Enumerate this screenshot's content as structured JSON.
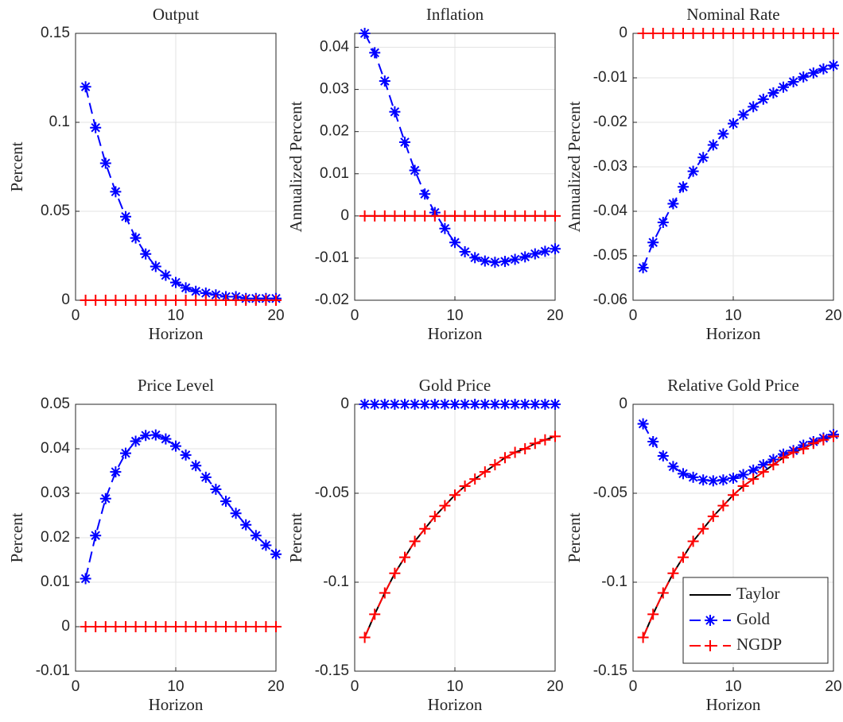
{
  "chart_data": [
    {
      "type": "line",
      "title": "Output",
      "xlabel": "Horizon",
      "ylabel": "Percent",
      "x": [
        1,
        2,
        3,
        4,
        5,
        6,
        7,
        8,
        9,
        10,
        11,
        12,
        13,
        14,
        15,
        16,
        17,
        18,
        19,
        20
      ],
      "xlim": [
        0,
        20
      ],
      "xticks": [
        0,
        10,
        20
      ],
      "ylim": [
        0,
        0.15
      ],
      "yticks": [
        0,
        0.05,
        0.1,
        0.15
      ],
      "grid": true,
      "series": [
        {
          "color": "#000000",
          "dash": false,
          "values": [
            0,
            0,
            0,
            0,
            0,
            0,
            0,
            0,
            0,
            0,
            0,
            0,
            0,
            0,
            0,
            0,
            0,
            0,
            0,
            0
          ]
        },
        {
          "color": "#0000ff",
          "dash": true,
          "marker": "*",
          "values": [
            0.12,
            0.097,
            0.077,
            0.061,
            0.047,
            0.035,
            0.026,
            0.019,
            0.014,
            0.01,
            0.007,
            0.005,
            0.004,
            0.003,
            0.002,
            0.002,
            0.001,
            0.001,
            0.001,
            0.001
          ]
        },
        {
          "color": "#ff0000",
          "dash": true,
          "marker": "+",
          "values": [
            0,
            0,
            0,
            0,
            0,
            0,
            0,
            0,
            0,
            0,
            0,
            0,
            0,
            0,
            0,
            0,
            0,
            0,
            0,
            0
          ]
        }
      ]
    },
    {
      "type": "line",
      "title": "Inflation",
      "xlabel": "Horizon",
      "ylabel": "Annualized Percent",
      "x": [
        1,
        2,
        3,
        4,
        5,
        6,
        7,
        8,
        9,
        10,
        11,
        12,
        13,
        14,
        15,
        16,
        17,
        18,
        19,
        20
      ],
      "xlim": [
        0,
        20
      ],
      "xticks": [
        0,
        10,
        20
      ],
      "ylim": [
        -0.02,
        0.0433
      ],
      "yticks": [
        -0.02,
        -0.01,
        0,
        0.01,
        0.02,
        0.03,
        0.04
      ],
      "grid": true,
      "series": [
        {
          "color": "#000000",
          "dash": false,
          "values": [
            0,
            0,
            0,
            0,
            0,
            0,
            0,
            0,
            0,
            0,
            0,
            0,
            0,
            0,
            0,
            0,
            0,
            0,
            0,
            0
          ]
        },
        {
          "color": "#0000ff",
          "dash": true,
          "marker": "*",
          "values": [
            0.0433,
            0.0387,
            0.032,
            0.0247,
            0.0175,
            0.0108,
            0.0052,
            0.0008,
            -0.003,
            -0.0063,
            -0.0085,
            -0.0099,
            -0.0107,
            -0.011,
            -0.0108,
            -0.0103,
            -0.0097,
            -0.009,
            -0.0084,
            -0.0078
          ]
        },
        {
          "color": "#ff0000",
          "dash": true,
          "marker": "+",
          "values": [
            0,
            0,
            0,
            0,
            0,
            0,
            0,
            0,
            0,
            0,
            0,
            0,
            0,
            0,
            0,
            0,
            0,
            0,
            0,
            0
          ]
        }
      ]
    },
    {
      "type": "line",
      "title": "Nominal Rate",
      "xlabel": "Horizon",
      "ylabel": "Annualized Percent",
      "x": [
        1,
        2,
        3,
        4,
        5,
        6,
        7,
        8,
        9,
        10,
        11,
        12,
        13,
        14,
        15,
        16,
        17,
        18,
        19,
        20
      ],
      "xlim": [
        0,
        20
      ],
      "xticks": [
        0,
        10,
        20
      ],
      "ylim": [
        -0.06,
        0
      ],
      "yticks": [
        -0.06,
        -0.05,
        -0.04,
        -0.03,
        -0.02,
        -0.01,
        0
      ],
      "grid": true,
      "series": [
        {
          "color": "#000000",
          "dash": false,
          "values": [
            0,
            0,
            0,
            0,
            0,
            0,
            0,
            0,
            0,
            0,
            0,
            0,
            0,
            0,
            0,
            0,
            0,
            0,
            0,
            0
          ]
        },
        {
          "color": "#0000ff",
          "dash": true,
          "marker": "*",
          "values": [
            -0.0527,
            -0.047,
            -0.0425,
            -0.0383,
            -0.0345,
            -0.031,
            -0.0279,
            -0.0251,
            -0.0226,
            -0.0203,
            -0.0183,
            -0.0165,
            -0.0148,
            -0.0134,
            -0.0121,
            -0.0109,
            -0.0098,
            -0.0089,
            -0.008,
            -0.0072
          ]
        },
        {
          "color": "#ff0000",
          "dash": true,
          "marker": "+",
          "values": [
            0,
            0,
            0,
            0,
            0,
            0,
            0,
            0,
            0,
            0,
            0,
            0,
            0,
            0,
            0,
            0,
            0,
            0,
            0,
            0
          ]
        }
      ]
    },
    {
      "type": "line",
      "title": "Price Level",
      "xlabel": "Horizon",
      "ylabel": "Percent",
      "x": [
        1,
        2,
        3,
        4,
        5,
        6,
        7,
        8,
        9,
        10,
        11,
        12,
        13,
        14,
        15,
        16,
        17,
        18,
        19,
        20
      ],
      "xlim": [
        0,
        20
      ],
      "xticks": [
        0,
        10,
        20
      ],
      "ylim": [
        -0.01,
        0.05
      ],
      "yticks": [
        -0.01,
        0,
        0.01,
        0.02,
        0.03,
        0.04,
        0.05
      ],
      "grid": true,
      "series": [
        {
          "color": "#000000",
          "dash": false,
          "values": [
            0,
            0,
            0,
            0,
            0,
            0,
            0,
            0,
            0,
            0,
            0,
            0,
            0,
            0,
            0,
            0,
            0,
            0,
            0,
            0
          ]
        },
        {
          "color": "#0000ff",
          "dash": true,
          "marker": "*",
          "values": [
            0.0108,
            0.0205,
            0.0288,
            0.0348,
            0.039,
            0.0417,
            0.043,
            0.0431,
            0.0422,
            0.0406,
            0.0386,
            0.0362,
            0.0336,
            0.0309,
            0.0282,
            0.0255,
            0.0229,
            0.0205,
            0.0183,
            0.0163
          ]
        },
        {
          "color": "#ff0000",
          "dash": true,
          "marker": "+",
          "values": [
            0,
            0,
            0,
            0,
            0,
            0,
            0,
            0,
            0,
            0,
            0,
            0,
            0,
            0,
            0,
            0,
            0,
            0,
            0,
            0
          ]
        }
      ]
    },
    {
      "type": "line",
      "title": "Gold Price",
      "xlabel": "Horizon",
      "ylabel": "Percent",
      "x": [
        1,
        2,
        3,
        4,
        5,
        6,
        7,
        8,
        9,
        10,
        11,
        12,
        13,
        14,
        15,
        16,
        17,
        18,
        19,
        20
      ],
      "xlim": [
        0,
        20
      ],
      "xticks": [
        0,
        10,
        20
      ],
      "ylim": [
        -0.15,
        0
      ],
      "yticks": [
        -0.15,
        -0.1,
        -0.05,
        0
      ],
      "grid": true,
      "series": [
        {
          "color": "#000000",
          "dash": false,
          "values": [
            -0.131,
            -0.118,
            -0.106,
            -0.095,
            -0.086,
            -0.077,
            -0.07,
            -0.063,
            -0.057,
            -0.051,
            -0.046,
            -0.042,
            -0.038,
            -0.034,
            -0.03,
            -0.027,
            -0.025,
            -0.022,
            -0.02,
            -0.018
          ]
        },
        {
          "color": "#0000ff",
          "dash": true,
          "marker": "*",
          "values": [
            0,
            0,
            0,
            0,
            0,
            0,
            0,
            0,
            0,
            0,
            0,
            0,
            0,
            0,
            0,
            0,
            0,
            0,
            0,
            0
          ]
        },
        {
          "color": "#ff0000",
          "dash": true,
          "marker": "+",
          "values": [
            -0.131,
            -0.118,
            -0.106,
            -0.095,
            -0.086,
            -0.077,
            -0.07,
            -0.063,
            -0.057,
            -0.051,
            -0.046,
            -0.042,
            -0.038,
            -0.034,
            -0.03,
            -0.027,
            -0.025,
            -0.022,
            -0.02,
            -0.018
          ]
        }
      ]
    },
    {
      "type": "line",
      "title": "Relative Gold Price",
      "xlabel": "Horizon",
      "ylabel": "Percent",
      "x": [
        1,
        2,
        3,
        4,
        5,
        6,
        7,
        8,
        9,
        10,
        11,
        12,
        13,
        14,
        15,
        16,
        17,
        18,
        19,
        20
      ],
      "xlim": [
        0,
        20
      ],
      "xticks": [
        0,
        10,
        20
      ],
      "ylim": [
        -0.15,
        0
      ],
      "yticks": [
        -0.15,
        -0.1,
        -0.05,
        0
      ],
      "grid": true,
      "legend": "southeast",
      "series": [
        {
          "name": "Taylor",
          "color": "#000000",
          "dash": false,
          "values": [
            -0.131,
            -0.118,
            -0.106,
            -0.095,
            -0.086,
            -0.077,
            -0.07,
            -0.063,
            -0.057,
            -0.051,
            -0.046,
            -0.042,
            -0.038,
            -0.034,
            -0.03,
            -0.027,
            -0.025,
            -0.022,
            -0.02,
            -0.018
          ]
        },
        {
          "name": "Gold",
          "color": "#0000ff",
          "dash": true,
          "marker": "*",
          "values": [
            -0.011,
            -0.021,
            -0.029,
            -0.035,
            -0.039,
            -0.041,
            -0.0425,
            -0.043,
            -0.0425,
            -0.0415,
            -0.0395,
            -0.037,
            -0.034,
            -0.031,
            -0.028,
            -0.026,
            -0.023,
            -0.021,
            -0.019,
            -0.017
          ]
        },
        {
          "name": "NGDP",
          "color": "#ff0000",
          "dash": true,
          "marker": "+",
          "values": [
            -0.131,
            -0.118,
            -0.106,
            -0.095,
            -0.086,
            -0.077,
            -0.07,
            -0.063,
            -0.057,
            -0.051,
            -0.046,
            -0.042,
            -0.038,
            -0.034,
            -0.03,
            -0.027,
            -0.025,
            -0.022,
            -0.02,
            -0.018
          ]
        }
      ]
    }
  ]
}
